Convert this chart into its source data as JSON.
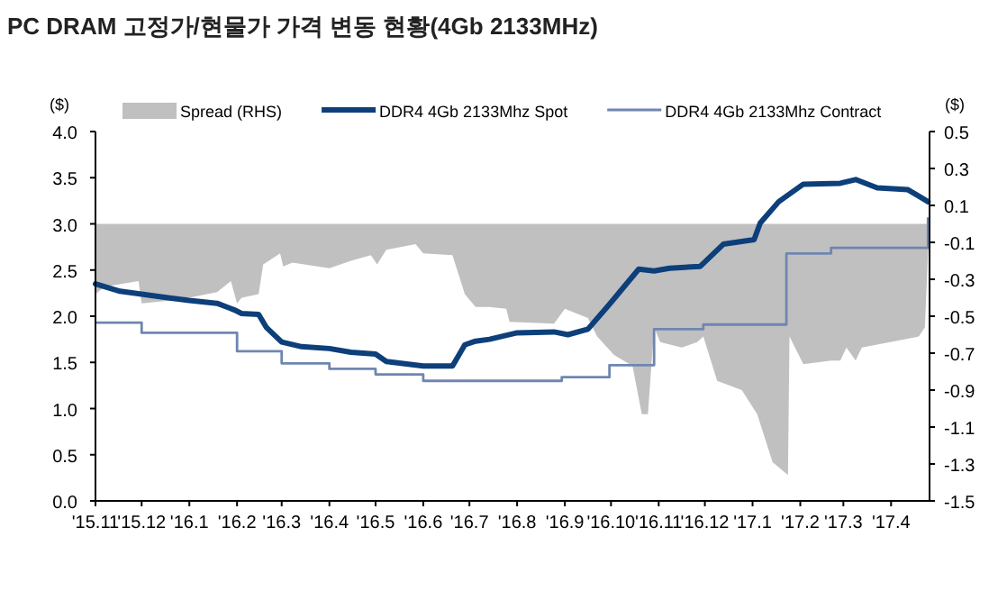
{
  "chart_data": {
    "type": "line",
    "title": "PC DRAM 고정가/현물가 가격 변동 현황(4Gb 2133MHz)",
    "ylabel": "($)",
    "y2label": "($)",
    "legend": "top",
    "xlim": [
      "2015-11-01",
      "2017-04-26"
    ],
    "xticks": [
      {
        "value": "2015-11-01",
        "label": "'15.11"
      },
      {
        "value": "2015-12-01",
        "label": "'15.12"
      },
      {
        "value": "2016-01-01",
        "label": "'16.1"
      },
      {
        "value": "2016-02-01",
        "label": "'16.2"
      },
      {
        "value": "2016-03-01",
        "label": "'16.3"
      },
      {
        "value": "2016-04-01",
        "label": "'16.4"
      },
      {
        "value": "2016-05-01",
        "label": "'16.5"
      },
      {
        "value": "2016-06-01",
        "label": "'16.6"
      },
      {
        "value": "2016-07-01",
        "label": "'16.7"
      },
      {
        "value": "2016-08-01",
        "label": "'16.8"
      },
      {
        "value": "2016-09-01",
        "label": "'16.9"
      },
      {
        "value": "2016-10-01",
        "label": "'16.10"
      },
      {
        "value": "2016-11-01",
        "label": "'16.11"
      },
      {
        "value": "2016-12-01",
        "label": "'16.12"
      },
      {
        "value": "2017-01-01",
        "label": "'17.1"
      },
      {
        "value": "2017-02-01",
        "label": "'17.2"
      },
      {
        "value": "2017-03-01",
        "label": "'17.3"
      },
      {
        "value": "2017-04-01",
        "label": "'17.4"
      }
    ],
    "ylim": [
      0,
      4
    ],
    "yticks": [
      {
        "value": 0,
        "label": "0.0"
      },
      {
        "value": 0.5,
        "label": "0.5"
      },
      {
        "value": 1,
        "label": "1.0"
      },
      {
        "value": 1.5,
        "label": "1.5"
      },
      {
        "value": 2,
        "label": "2.0"
      },
      {
        "value": 2.5,
        "label": "2.5"
      },
      {
        "value": 3,
        "label": "3.0"
      },
      {
        "value": 3.5,
        "label": "3.5"
      },
      {
        "value": 4,
        "label": "4.0"
      }
    ],
    "y2lim": [
      -1.5,
      0.5
    ],
    "y2ticks": [
      {
        "value": 0.5,
        "label": "0.5"
      },
      {
        "value": 0.3,
        "label": "0.3"
      },
      {
        "value": 0.1,
        "label": "0.1"
      },
      {
        "value": -0.1,
        "label": "-0.1"
      },
      {
        "value": -0.3,
        "label": "-0.3"
      },
      {
        "value": -0.5,
        "label": "-0.5"
      },
      {
        "value": -0.7,
        "label": "-0.7"
      },
      {
        "value": -0.9,
        "label": "-0.9"
      },
      {
        "value": -1.1,
        "label": "-1.1"
      },
      {
        "value": -1.3,
        "label": "-1.3"
      },
      {
        "value": -1.5,
        "label": "-1.5"
      }
    ],
    "series": [
      {
        "name": "Spread (RHS)",
        "type": "area",
        "axis": "y2",
        "color": "#c0c0c0",
        "x": [
          "2015-11-01",
          "2015-11-07",
          "2015-11-29",
          "2015-12-01",
          "2015-12-26",
          "2016-01-19",
          "2016-01-28",
          "2016-02-01",
          "2016-02-04",
          "2016-02-15",
          "2016-02-18",
          "2016-02-29",
          "2016-03-02",
          "2016-03-08",
          "2016-04-01",
          "2016-04-15",
          "2016-04-28",
          "2016-05-02",
          "2016-05-08",
          "2016-05-27",
          "2016-06-01",
          "2016-06-20",
          "2016-06-28",
          "2016-07-05",
          "2016-07-14",
          "2016-07-25",
          "2016-07-27",
          "2016-08-25",
          "2016-09-01",
          "2016-09-16",
          "2016-09-22",
          "2016-10-03",
          "2016-10-15",
          "2016-10-21",
          "2016-10-25",
          "2016-10-29",
          "2016-11-02",
          "2016-11-16",
          "2016-11-26",
          "2016-11-30",
          "2016-12-09",
          "2016-12-25",
          "2017-01-04",
          "2017-01-14",
          "2017-01-24",
          "2017-01-25",
          "2017-02-03",
          "2017-02-21",
          "2017-02-27",
          "2017-03-03",
          "2017-03-09",
          "2017-03-13",
          "2017-04-19",
          "2017-04-23",
          "2017-04-26"
        ],
        "values": [
          -0.38,
          -0.34,
          -0.31,
          -0.43,
          -0.41,
          -0.37,
          -0.31,
          -0.43,
          -0.4,
          -0.38,
          -0.22,
          -0.16,
          -0.23,
          -0.21,
          -0.24,
          -0.2,
          -0.17,
          -0.22,
          -0.14,
          -0.11,
          -0.16,
          -0.17,
          -0.38,
          -0.45,
          -0.45,
          -0.46,
          -0.53,
          -0.54,
          -0.46,
          -0.51,
          -0.61,
          -0.71,
          -0.77,
          -1.03,
          -1.03,
          -0.56,
          -0.64,
          -0.67,
          -0.64,
          -0.61,
          -0.85,
          -0.9,
          -1.03,
          -1.29,
          -1.36,
          -0.61,
          -0.76,
          -0.74,
          -0.74,
          -0.67,
          -0.74,
          -0.67,
          -0.61,
          -0.56,
          0.04
        ]
      },
      {
        "name": "DDR4 4Gb 2133Mhz Spot",
        "color": "#0d3f7a",
        "x": [
          "2015-11-01",
          "2015-11-17",
          "2015-12-01",
          "2015-12-18",
          "2016-01-01",
          "2016-01-19",
          "2016-01-30",
          "2016-02-04",
          "2016-02-15",
          "2016-02-20",
          "2016-03-01",
          "2016-03-14",
          "2016-04-01",
          "2016-04-15",
          "2016-05-01",
          "2016-05-08",
          "2016-06-01",
          "2016-06-20",
          "2016-06-28",
          "2016-07-05",
          "2016-07-14",
          "2016-08-01",
          "2016-08-25",
          "2016-09-03",
          "2016-09-16",
          "2016-09-30",
          "2016-10-19",
          "2016-10-29",
          "2016-11-08",
          "2016-11-28",
          "2016-12-13",
          "2017-01-02",
          "2017-01-06",
          "2017-01-18",
          "2017-02-03",
          "2017-02-27",
          "2017-03-09",
          "2017-03-23",
          "2017-04-12",
          "2017-04-25"
        ],
        "values": [
          2.35,
          2.27,
          2.24,
          2.2,
          2.17,
          2.14,
          2.07,
          2.03,
          2.02,
          1.88,
          1.72,
          1.67,
          1.65,
          1.61,
          1.59,
          1.51,
          1.46,
          1.46,
          1.69,
          1.73,
          1.75,
          1.82,
          1.83,
          1.8,
          1.86,
          2.13,
          2.51,
          2.49,
          2.52,
          2.54,
          2.78,
          2.83,
          3.01,
          3.24,
          3.43,
          3.44,
          3.48,
          3.39,
          3.37,
          3.24
        ]
      },
      {
        "name": "DDR4 4Gb 2133Mhz Contract",
        "type": "step",
        "color": "#6f86b0",
        "x": [
          "2015-11-01",
          "2015-12-01",
          "2016-02-01",
          "2016-03-01",
          "2016-04-01",
          "2016-05-01",
          "2016-06-01",
          "2016-08-30",
          "2016-09-30",
          "2016-10-29",
          "2016-11-30",
          "2017-01-23",
          "2017-02-21",
          "2017-04-25"
        ],
        "values": [
          1.93,
          1.82,
          1.62,
          1.49,
          1.43,
          1.37,
          1.3,
          1.34,
          1.47,
          1.86,
          1.91,
          2.68,
          2.74,
          3.07
        ]
      }
    ]
  }
}
